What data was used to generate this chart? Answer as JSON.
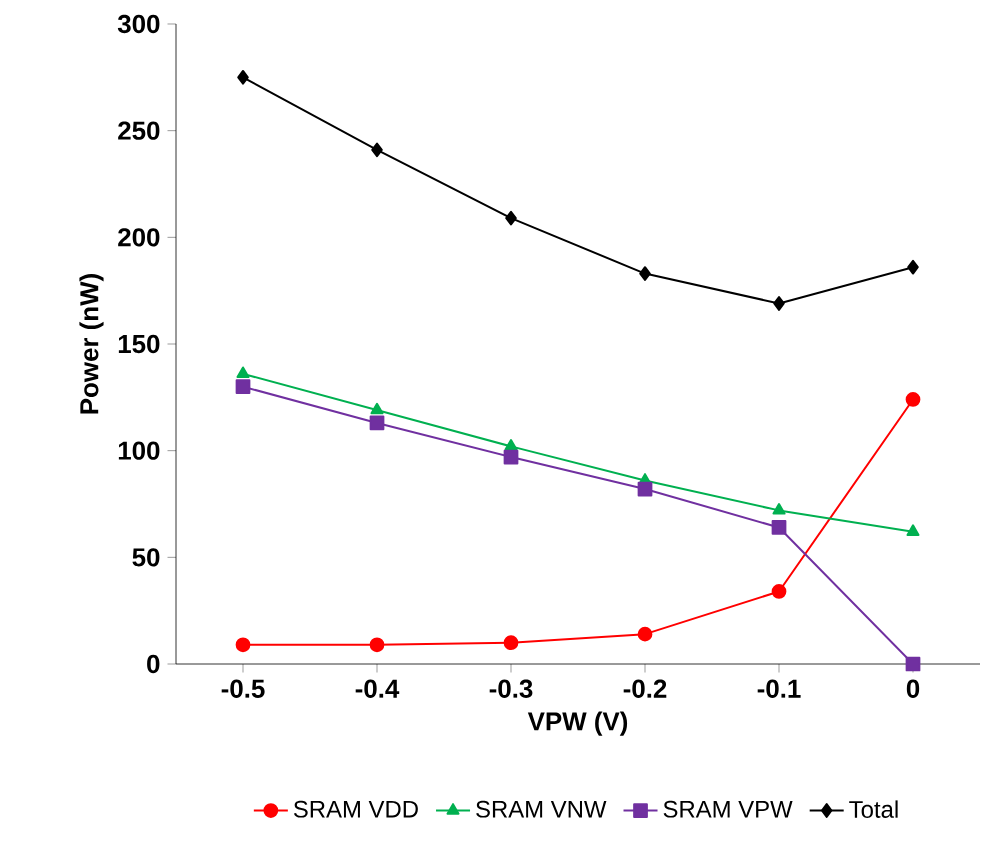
{
  "chart_data": {
    "type": "line",
    "xlabel": "VPW (V)",
    "ylabel": "Power (nW)",
    "x": [
      -0.5,
      -0.4,
      -0.3,
      -0.2,
      -0.1,
      0
    ],
    "xlim": [
      -0.55,
      0.05
    ],
    "xticks": [
      -0.5,
      -0.4,
      -0.3,
      -0.2,
      -0.1,
      0
    ],
    "ylim": [
      0,
      300
    ],
    "yticks": [
      0,
      50,
      100,
      150,
      200,
      250,
      300
    ],
    "grid": false,
    "legend": "bottom",
    "line_style": "solid",
    "series": [
      {
        "name": "SRAM VDD",
        "color": "#ff0000",
        "marker": "circle",
        "values": [
          9,
          9,
          10,
          14,
          34,
          124
        ]
      },
      {
        "name": "SRAM VNW",
        "color": "#00b050",
        "marker": "triangle",
        "values": [
          136,
          119,
          102,
          86,
          72,
          62
        ]
      },
      {
        "name": "SRAM VPW",
        "color": "#7030a0",
        "marker": "square",
        "values": [
          130,
          113,
          97,
          82,
          64,
          0
        ]
      },
      {
        "name": "Total",
        "color": "#000000",
        "marker": "diamond",
        "values": [
          275,
          241,
          209,
          183,
          169,
          186
        ]
      }
    ]
  }
}
